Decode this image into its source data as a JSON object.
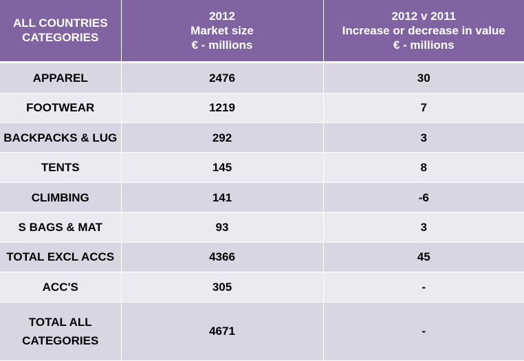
{
  "chart_data": {
    "type": "table",
    "columns": [
      [
        "ALL COUNTRIES",
        "CATEGORIES"
      ],
      [
        "2012",
        "Market size",
        "€ - millions"
      ],
      [
        "2012 v 2011",
        "Increase or decrease in value",
        "€ - millions"
      ]
    ],
    "rows": [
      {
        "category": "APPAREL",
        "market_size": "2476",
        "change": "30"
      },
      {
        "category": "FOOTWEAR",
        "market_size": "1219",
        "change": "7"
      },
      {
        "category": "BACKPACKS & LUG",
        "market_size": "292",
        "change": "3"
      },
      {
        "category": "TENTS",
        "market_size": "145",
        "change": "8"
      },
      {
        "category": "CLIMBING",
        "market_size": "141",
        "change": "-6"
      },
      {
        "category": "S BAGS & MAT",
        "market_size": "93",
        "change": "3"
      },
      {
        "category": "TOTAL EXCL ACCS",
        "market_size": "4366",
        "change": "45"
      },
      {
        "category": "ACC'S",
        "market_size": "305",
        "change": "-"
      },
      {
        "category": "TOTAL ALL CATEGORIES",
        "market_size": "4671",
        "change": "-"
      }
    ]
  },
  "colors": {
    "header_bg": "#8064a2",
    "header_text": "#ffffff",
    "row_dark": "#d9d5e3",
    "row_light": "#ece9f1"
  }
}
